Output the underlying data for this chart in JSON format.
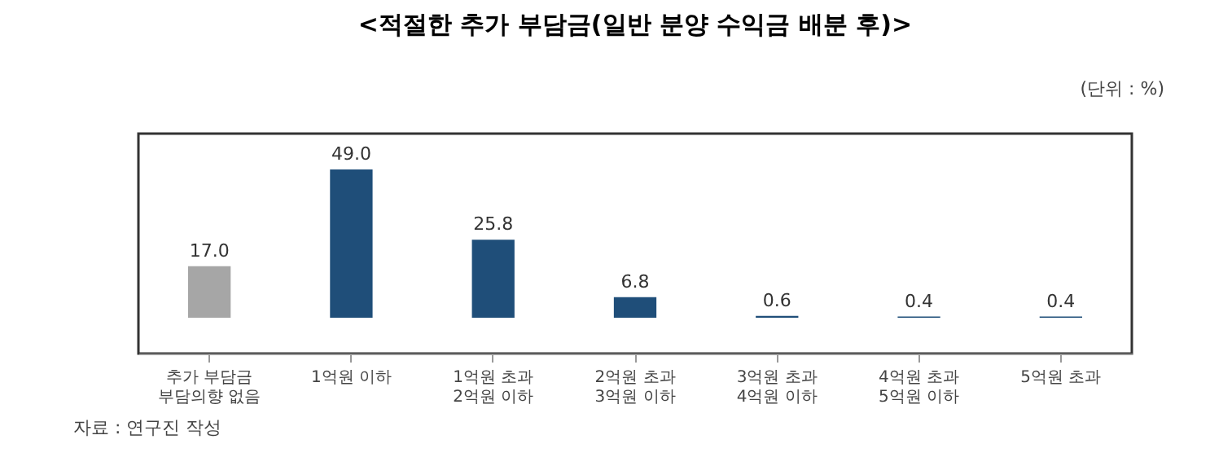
{
  "chart_data": {
    "type": "bar",
    "title": "<적절한 추가 부담금(일반 분양 수익금 배분 후)>",
    "subtitle": "(단위 : %)",
    "categories": [
      "추가 부담금\n부담의향 없음",
      "1억원 이하",
      "1억원 초과\n2억원 이하",
      "2억원 초과\n3억원 이하",
      "3억원 초과\n4억원 이하",
      "4억원 초과\n5억원 이하",
      "5억원 초과"
    ],
    "values": [
      17.0,
      49.0,
      25.8,
      6.8,
      0.6,
      0.4,
      0.4
    ],
    "colors": [
      "#a6a6a6",
      "#1f4e79",
      "#1f4e79",
      "#1f4e79",
      "#1f4e79",
      "#1f4e79",
      "#1f4e79"
    ],
    "value_labels": [
      "17.0",
      "49.0",
      "25.8",
      "6.8",
      "0.6",
      "0.4",
      "0.4"
    ],
    "annotations": [
      "자료 : 연구진 작성"
    ]
  }
}
